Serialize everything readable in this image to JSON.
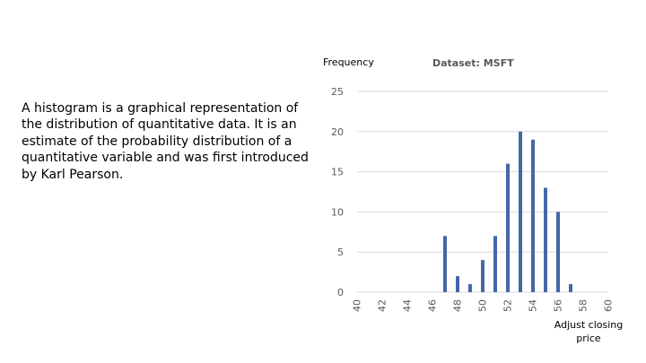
{
  "slide": {
    "body_text": "A histogram is a graphical representation of the distribution of quantitative data. It is an estimate of the probability distribution of a quantitative variable and was first introduced by Karl Pearson."
  },
  "chart_data": {
    "type": "bar",
    "title": "Dataset: MSFT",
    "ylabel": "Frequency",
    "xlabel": [
      "Adjust closing",
      "price"
    ],
    "x": [
      47,
      48,
      49,
      50,
      51,
      52,
      53,
      54,
      55,
      56,
      57
    ],
    "values": [
      7,
      2,
      1,
      4,
      7,
      16,
      20,
      19,
      13,
      10,
      1
    ],
    "xlim": [
      40,
      60
    ],
    "ylim": [
      0,
      25
    ],
    "x_ticks": [
      "40",
      "42",
      "44",
      "46",
      "48",
      "50",
      "52",
      "54",
      "56",
      "58",
      "60"
    ],
    "y_ticks": [
      "0",
      "5",
      "10",
      "15",
      "20",
      "25"
    ],
    "grid": true,
    "bar_color": "#4467A6",
    "grid_color": "#D9D9D9"
  }
}
